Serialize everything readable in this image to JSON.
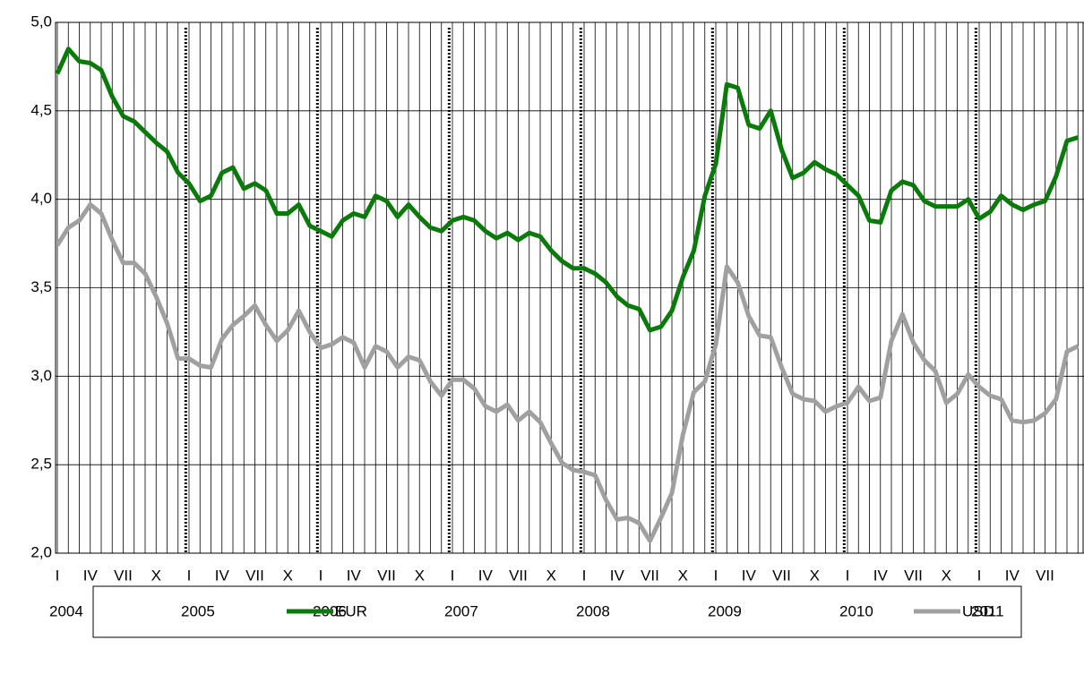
{
  "chart_data": {
    "type": "line",
    "categories": [
      "I",
      null,
      null,
      "IV",
      null,
      null,
      "VII",
      null,
      null,
      "X",
      null,
      null,
      "I",
      null,
      null,
      "IV",
      null,
      null,
      "VII",
      null,
      null,
      "X",
      null,
      null,
      "I",
      null,
      null,
      "IV",
      null,
      null,
      "VII",
      null,
      null,
      "X",
      null,
      null,
      "I",
      null,
      null,
      "IV",
      null,
      null,
      "VII",
      null,
      null,
      "X",
      null,
      null,
      "I",
      null,
      null,
      "IV",
      null,
      null,
      "VII",
      null,
      null,
      "X",
      null,
      null,
      "I",
      null,
      null,
      "IV",
      null,
      null,
      "VII",
      null,
      null,
      "X",
      null,
      null,
      "I",
      null,
      null,
      "IV",
      null,
      null,
      "VII",
      null,
      null,
      "X",
      null,
      null,
      "I",
      null,
      null,
      "IV",
      null,
      null,
      "VII",
      null,
      null,
      null
    ],
    "year_labels": [
      "2004",
      "2005",
      "2006",
      "2007",
      "2008",
      "2009",
      "2010",
      "2011"
    ],
    "series": [
      {
        "name": "EUR",
        "color": "#0a7a0a",
        "values": [
          4.71,
          4.85,
          4.78,
          4.77,
          4.73,
          4.58,
          4.47,
          4.44,
          4.38,
          4.32,
          4.27,
          4.15,
          4.09,
          3.99,
          4.02,
          4.15,
          4.18,
          4.06,
          4.09,
          4.05,
          3.92,
          3.92,
          3.97,
          3.85,
          3.82,
          3.79,
          3.88,
          3.92,
          3.9,
          4.02,
          3.99,
          3.9,
          3.97,
          3.9,
          3.84,
          3.82,
          3.88,
          3.9,
          3.88,
          3.82,
          3.78,
          3.81,
          3.77,
          3.81,
          3.79,
          3.71,
          3.65,
          3.61,
          3.61,
          3.58,
          3.53,
          3.45,
          3.4,
          3.38,
          3.26,
          3.28,
          3.37,
          3.56,
          3.71,
          4.02,
          4.2,
          4.65,
          4.63,
          4.42,
          4.4,
          4.5,
          4.28,
          4.12,
          4.15,
          4.21,
          4.17,
          4.14,
          4.08,
          4.02,
          3.88,
          3.87,
          4.05,
          4.1,
          4.08,
          3.99,
          3.96,
          3.96,
          3.96,
          4.0,
          3.89,
          3.93,
          4.02,
          3.97,
          3.94,
          3.97,
          3.99,
          4.13,
          4.33,
          4.35
        ]
      },
      {
        "name": "USD",
        "color": "#a0a0a0",
        "values": [
          3.74,
          3.84,
          3.88,
          3.97,
          3.92,
          3.77,
          3.64,
          3.64,
          3.58,
          3.45,
          3.3,
          3.1,
          3.1,
          3.06,
          3.05,
          3.21,
          3.29,
          3.34,
          3.4,
          3.29,
          3.2,
          3.26,
          3.37,
          3.25,
          3.16,
          3.18,
          3.22,
          3.19,
          3.05,
          3.17,
          3.14,
          3.05,
          3.11,
          3.09,
          2.97,
          2.89,
          2.98,
          2.98,
          2.93,
          2.83,
          2.8,
          2.84,
          2.75,
          2.8,
          2.74,
          2.62,
          2.51,
          2.47,
          2.46,
          2.44,
          2.3,
          2.19,
          2.2,
          2.17,
          2.07,
          2.2,
          2.34,
          2.67,
          2.91,
          2.97,
          3.18,
          3.62,
          3.53,
          3.34,
          3.23,
          3.22,
          3.05,
          2.9,
          2.87,
          2.86,
          2.8,
          2.83,
          2.85,
          2.94,
          2.86,
          2.88,
          3.2,
          3.35,
          3.19,
          3.09,
          3.03,
          2.85,
          2.9,
          3.01,
          2.94,
          2.89,
          2.87,
          2.75,
          2.74,
          2.75,
          2.79,
          2.87,
          3.14,
          3.17
        ]
      }
    ],
    "ylim": [
      2,
      5
    ],
    "yticks": [
      {
        "value": 2,
        "label": "2,0"
      },
      {
        "value": 2.5,
        "label": "2,5"
      },
      {
        "value": 3,
        "label": "3,0"
      },
      {
        "value": 3.5,
        "label": "3,5"
      },
      {
        "value": 4,
        "label": "4,0"
      },
      {
        "value": 4.5,
        "label": "4,5"
      },
      {
        "value": 5,
        "label": "5,0"
      }
    ],
    "grid": true
  }
}
